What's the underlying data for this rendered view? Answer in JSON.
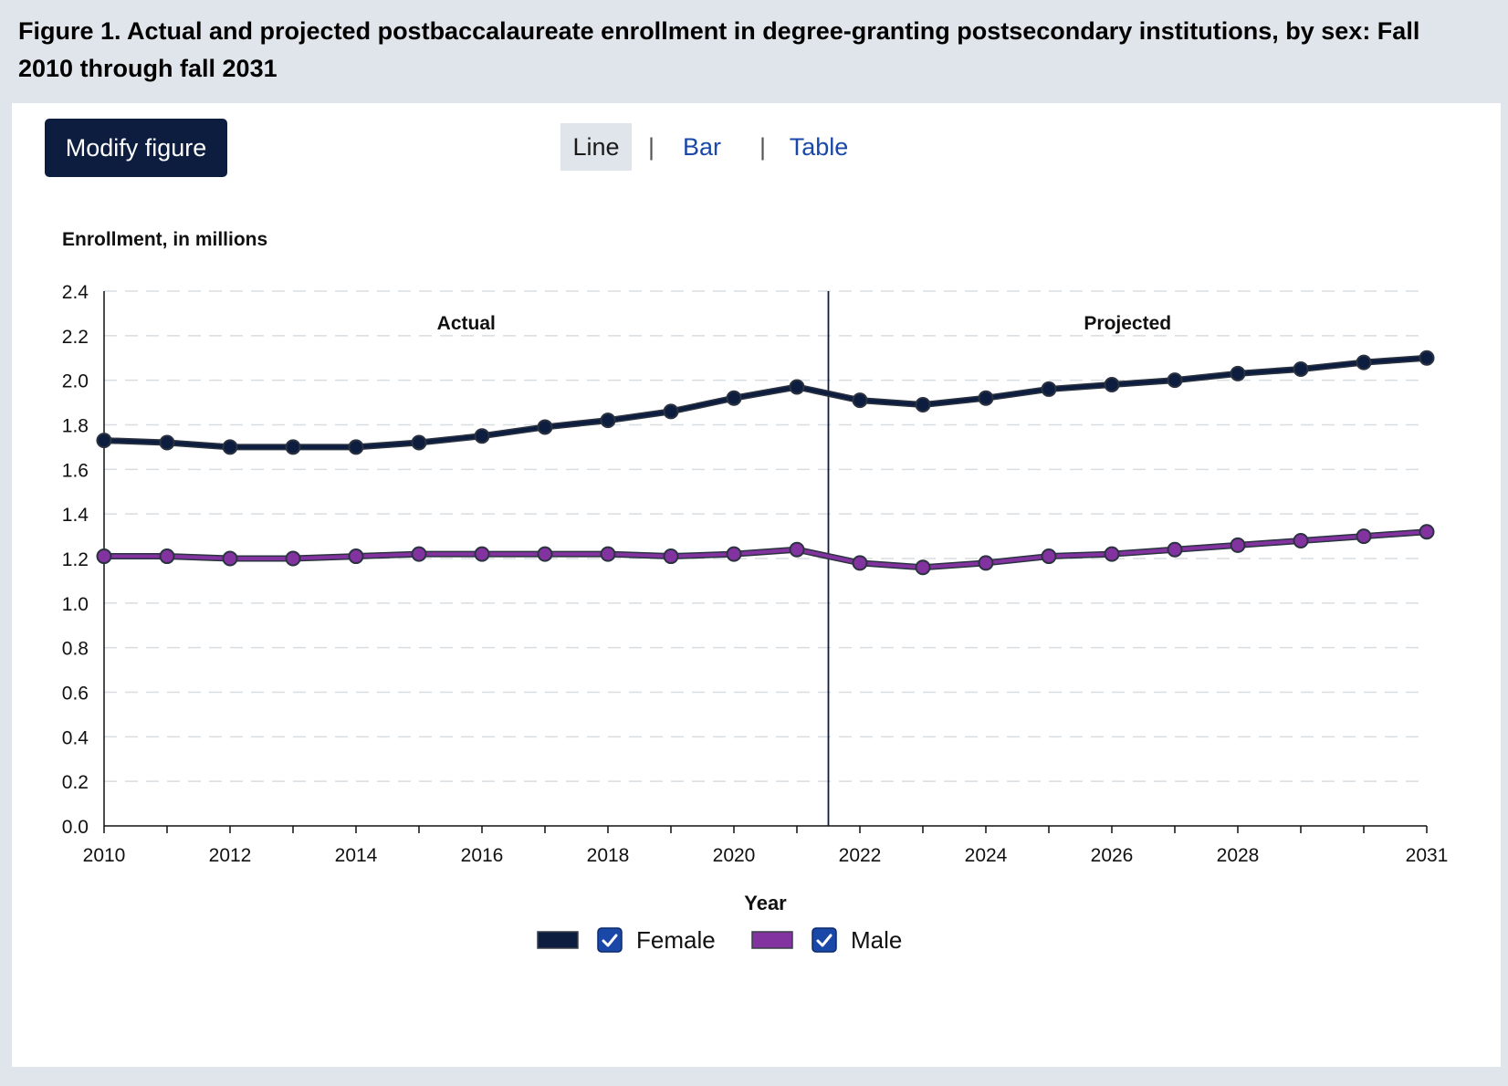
{
  "figure": {
    "title_line1": "Figure 1. Actual and projected postbaccalaureate enrollment in degree-granting postsecondary institutions, by sex: Fall",
    "title_line2": "2010 through fall 2031"
  },
  "toolbar": {
    "modify_label": "Modify figure",
    "tabs": [
      {
        "label": "Line",
        "active": true
      },
      {
        "label": "Bar",
        "active": false
      },
      {
        "label": "Table",
        "active": false
      }
    ],
    "separator": "|"
  },
  "colors": {
    "female": "#0d1d3f",
    "male": "#8233a0",
    "checkbox": "#1a48a8",
    "grid": "#d8dde2"
  },
  "chart_data": {
    "type": "line",
    "ylabel": "Enrollment, in millions",
    "xlabel": "Year",
    "ylim": [
      0,
      2.4
    ],
    "yticks": [
      0.0,
      0.2,
      0.4,
      0.6,
      0.8,
      1.0,
      1.2,
      1.4,
      1.6,
      1.8,
      2.0,
      2.2,
      2.4
    ],
    "ytick_labels": [
      "0.0",
      "0.2",
      "0.4",
      "0.6",
      "0.8",
      "1.0",
      "1.2",
      "1.4",
      "1.6",
      "1.8",
      "2.0",
      "2.2",
      "2.4"
    ],
    "x": [
      2010,
      2011,
      2012,
      2013,
      2014,
      2015,
      2016,
      2017,
      2018,
      2019,
      2020,
      2021,
      2022,
      2023,
      2024,
      2025,
      2026,
      2027,
      2028,
      2029,
      2030,
      2031
    ],
    "xtick_labels": [
      "2010",
      "2012",
      "2014",
      "2016",
      "2018",
      "2020",
      "2022",
      "2024",
      "2026",
      "2028",
      "2031"
    ],
    "xtick_label_years": [
      2010,
      2012,
      2014,
      2016,
      2018,
      2020,
      2022,
      2024,
      2026,
      2028,
      2031
    ],
    "grid": true,
    "regions": [
      {
        "label": "Actual"
      },
      {
        "label": "Projected"
      }
    ],
    "divider_between": [
      2021,
      2022
    ],
    "series": [
      {
        "name": "Female",
        "values": [
          1.73,
          1.72,
          1.7,
          1.7,
          1.7,
          1.72,
          1.75,
          1.79,
          1.82,
          1.86,
          1.92,
          1.97,
          1.91,
          1.89,
          1.92,
          1.96,
          1.98,
          2.0,
          2.03,
          2.05,
          2.08,
          2.1
        ]
      },
      {
        "name": "Male",
        "values": [
          1.21,
          1.21,
          1.2,
          1.2,
          1.21,
          1.22,
          1.22,
          1.22,
          1.22,
          1.21,
          1.22,
          1.24,
          1.18,
          1.16,
          1.18,
          1.21,
          1.22,
          1.24,
          1.26,
          1.28,
          1.3,
          1.32
        ]
      }
    ],
    "legend": {
      "position": "bottom-center"
    }
  }
}
